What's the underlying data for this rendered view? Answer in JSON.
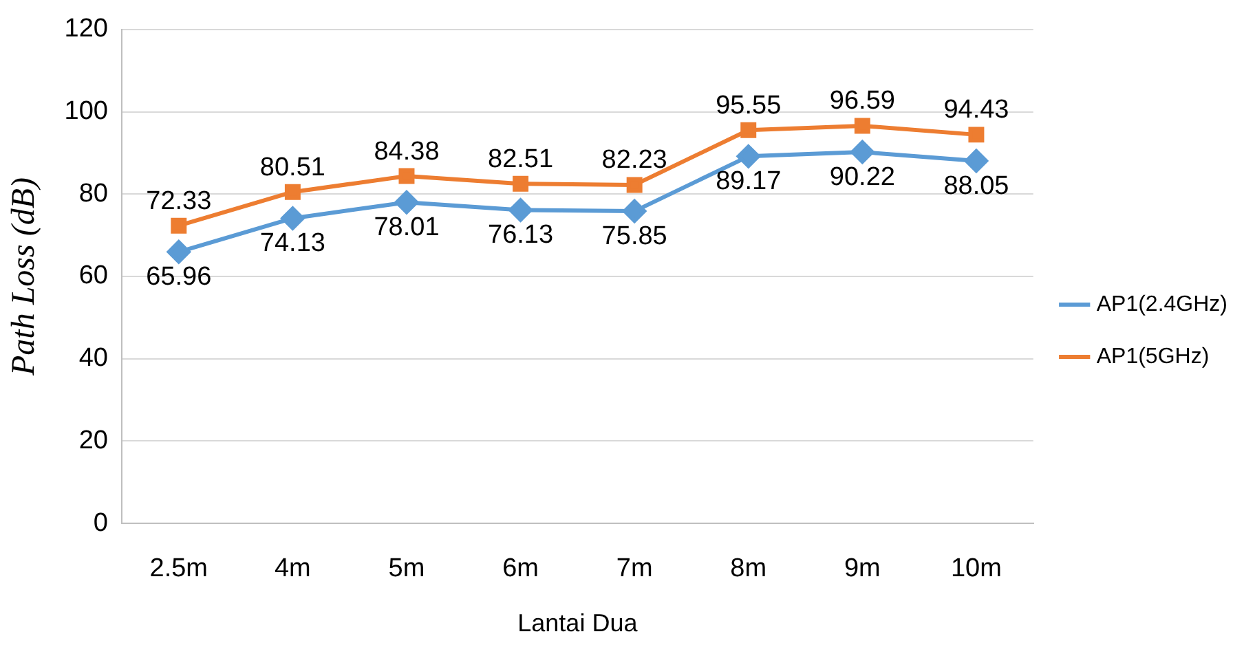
{
  "chart_data": {
    "type": "line",
    "ylabel": "Path Loss (dB)",
    "xlabel": "Lantai Dua",
    "categories": [
      "2.5m",
      "4m",
      "5m",
      "6m",
      "7m",
      "8m",
      "9m",
      "10m"
    ],
    "series": [
      {
        "name": "AP1(2.4GHz)",
        "color": "#5b9bd5",
        "marker": "diamond",
        "values": [
          65.96,
          74.13,
          78.01,
          76.13,
          75.85,
          89.17,
          90.22,
          88.05
        ]
      },
      {
        "name": "AP1(5GHz)",
        "color": "#ed7d31",
        "marker": "square",
        "values": [
          72.33,
          80.51,
          84.38,
          82.51,
          82.23,
          95.55,
          96.59,
          94.43
        ]
      }
    ],
    "ylim": [
      0,
      120
    ],
    "yticks": [
      0,
      20,
      40,
      60,
      80,
      100,
      120
    ],
    "grid": "y",
    "legend": "right",
    "data_labels": true,
    "line_style": "solid"
  }
}
